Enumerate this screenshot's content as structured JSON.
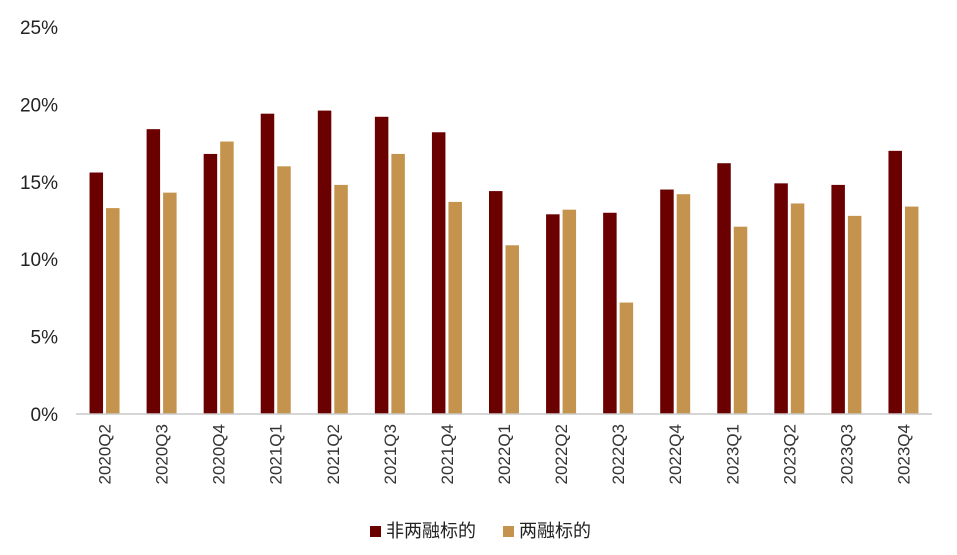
{
  "chart_data": {
    "type": "bar",
    "categories": [
      "2020Q2",
      "2020Q3",
      "2020Q4",
      "2021Q1",
      "2021Q2",
      "2021Q3",
      "2021Q4",
      "2022Q1",
      "2022Q2",
      "2022Q3",
      "2022Q4",
      "2023Q1",
      "2023Q2",
      "2023Q3",
      "2023Q4"
    ],
    "series": [
      {
        "name": "非两融标的",
        "color": "#6B0000",
        "values": [
          15.6,
          18.4,
          16.8,
          19.4,
          19.6,
          19.2,
          18.2,
          14.4,
          12.9,
          13.0,
          14.5,
          16.2,
          14.9,
          14.8,
          17.0
        ]
      },
      {
        "name": "两融标的",
        "color": "#C4944E",
        "values": [
          13.3,
          14.3,
          17.6,
          16.0,
          14.8,
          16.8,
          13.7,
          10.9,
          13.2,
          7.2,
          14.2,
          12.1,
          13.6,
          12.8,
          13.4
        ]
      }
    ],
    "ylim": [
      0,
      25
    ],
    "yticks": [
      0,
      5,
      10,
      15,
      20,
      25
    ],
    "ytick_labels": [
      "0%",
      "5%",
      "10%",
      "15%",
      "20%",
      "25%"
    ],
    "grid": false,
    "legend_position": "bottom-center"
  }
}
